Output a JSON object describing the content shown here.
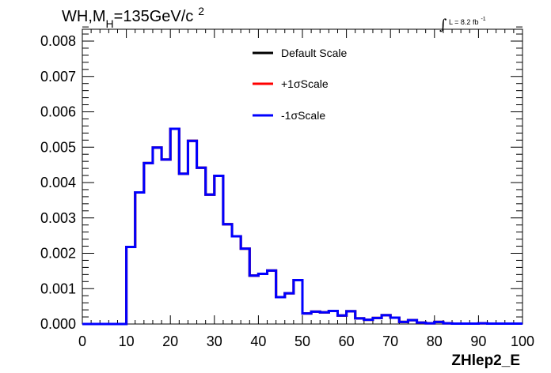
{
  "title": {
    "prefix": "WH,M",
    "sub": "H",
    "value": "=135GeV/c",
    "sup": "2"
  },
  "lumi": {
    "integral": "∫",
    "text": "L = 8.2 fb",
    "sup": "-1"
  },
  "chart_data": {
    "type": "histogram",
    "xlabel": "ZHlep2_E",
    "xlim": [
      0,
      100
    ],
    "ylim": [
      0,
      0.0085
    ],
    "x_ticks": [
      0,
      10,
      20,
      30,
      40,
      50,
      60,
      70,
      80,
      90,
      100
    ],
    "y_ticks": [
      0.0,
      0.001,
      0.002,
      0.003,
      0.004,
      0.005,
      0.006,
      0.007,
      0.008
    ],
    "y_tick_labels": [
      "0.000",
      "0.001",
      "0.002",
      "0.003",
      "0.004",
      "0.005",
      "0.006",
      "0.007",
      "0.008"
    ],
    "bin_edges": [
      0,
      2,
      4,
      6,
      8,
      10,
      12,
      14,
      16,
      18,
      20,
      22,
      24,
      26,
      28,
      30,
      32,
      34,
      36,
      38,
      40,
      42,
      44,
      46,
      48,
      50,
      52,
      54,
      56,
      58,
      60,
      62,
      64,
      66,
      68,
      70,
      72,
      74,
      76,
      78,
      80,
      82,
      84,
      86,
      88,
      90,
      92,
      94,
      96,
      98,
      100
    ],
    "series": [
      {
        "name": "Default Scale",
        "color": "#000000",
        "values": [
          0,
          0,
          0,
          0,
          0,
          0.00218,
          0.00372,
          0.00455,
          0.00499,
          0.00465,
          0.00552,
          0.00425,
          0.00518,
          0.00442,
          0.00366,
          0.00419,
          0.00282,
          0.00248,
          0.00213,
          0.00137,
          0.00142,
          0.00151,
          0.00076,
          0.00087,
          0.00124,
          0.0003,
          0.00035,
          0.00033,
          0.00037,
          0.00024,
          0.00036,
          0.00016,
          0.00012,
          0.00017,
          0.00025,
          0.00018,
          6e-05,
          0.00011,
          4e-05,
          2e-05,
          6e-05,
          2e-05,
          1e-05,
          1e-05,
          1e-05,
          2e-05,
          1e-05,
          1e-05,
          1e-05,
          1e-05
        ]
      },
      {
        "name": "+1σScale",
        "color": "#ff0000",
        "values": [
          0,
          0,
          0,
          0,
          0,
          0.00218,
          0.00372,
          0.00455,
          0.00499,
          0.00465,
          0.00552,
          0.00425,
          0.00518,
          0.00442,
          0.00366,
          0.00419,
          0.00282,
          0.00248,
          0.00213,
          0.00137,
          0.00142,
          0.00151,
          0.00076,
          0.00087,
          0.00124,
          0.0003,
          0.00035,
          0.00033,
          0.00037,
          0.00024,
          0.00036,
          0.00016,
          0.00012,
          0.00017,
          0.00025,
          0.00018,
          6e-05,
          0.00011,
          4e-05,
          2e-05,
          6e-05,
          2e-05,
          1e-05,
          1e-05,
          1e-05,
          2e-05,
          1e-05,
          1e-05,
          1e-05,
          1e-05
        ]
      },
      {
        "name": "-1σScale",
        "color": "#0000ff",
        "values": [
          0,
          0,
          0,
          0,
          0,
          0.00218,
          0.00372,
          0.00455,
          0.00499,
          0.00465,
          0.00552,
          0.00425,
          0.00518,
          0.00442,
          0.00366,
          0.00419,
          0.00282,
          0.00248,
          0.00213,
          0.00137,
          0.00142,
          0.00151,
          0.00076,
          0.00087,
          0.00124,
          0.0003,
          0.00035,
          0.00033,
          0.00037,
          0.00024,
          0.00036,
          0.00016,
          0.00012,
          0.00017,
          0.00025,
          0.00018,
          6e-05,
          0.00011,
          4e-05,
          2e-05,
          6e-05,
          2e-05,
          1e-05,
          1e-05,
          1e-05,
          2e-05,
          1e-05,
          1e-05,
          1e-05,
          1e-05
        ]
      }
    ],
    "legend": {
      "placement": "top-center"
    },
    "grid": false
  }
}
